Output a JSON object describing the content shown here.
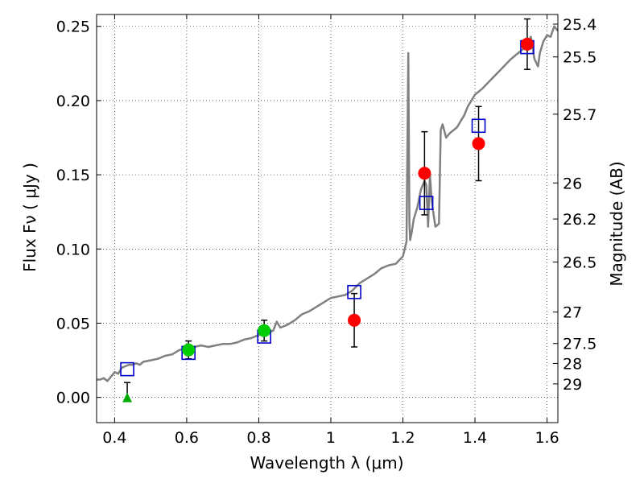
{
  "chart_data": {
    "type": "scatter",
    "xlabel": "Wavelength  λ (μm)",
    "ylabel": "Flux  Fν  ( μJy )",
    "ylabel_right": "Magnitude (AB)",
    "xlim": [
      0.35,
      1.63
    ],
    "ylim": [
      -0.017,
      0.258
    ],
    "grid": true,
    "x_ticks": [
      {
        "value": 0.4,
        "label": "0.4"
      },
      {
        "value": 0.6,
        "label": "0.6"
      },
      {
        "value": 0.8,
        "label": "0.8"
      },
      {
        "value": 1.0,
        "label": "1"
      },
      {
        "value": 1.2,
        "label": "1.2"
      },
      {
        "value": 1.4,
        "label": "1.4"
      },
      {
        "value": 1.6,
        "label": "1.6"
      }
    ],
    "y_ticks": [
      {
        "value": 0.0,
        "label": "0.00"
      },
      {
        "value": 0.05,
        "label": "0.05"
      },
      {
        "value": 0.1,
        "label": "0.10"
      },
      {
        "value": 0.15,
        "label": "0.15"
      },
      {
        "value": 0.2,
        "label": "0.20"
      },
      {
        "value": 0.25,
        "label": "0.25"
      }
    ],
    "mag_ticks": [
      {
        "flux": 0.2515,
        "label": "25.4"
      },
      {
        "flux": 0.2294,
        "label": "25.5"
      },
      {
        "flux": 0.1908,
        "label": "25.7"
      },
      {
        "flux": 0.1445,
        "label": "26"
      },
      {
        "flux": 0.1202,
        "label": "26.2"
      },
      {
        "flux": 0.0912,
        "label": "26.5"
      },
      {
        "flux": 0.0575,
        "label": "27"
      },
      {
        "flux": 0.0363,
        "label": "27.5"
      },
      {
        "flux": 0.0229,
        "label": "28"
      },
      {
        "flux": 0.0091,
        "label": "29"
      }
    ],
    "series": [
      {
        "kind": "line",
        "color": "#808080",
        "x": [
          0.35,
          0.36,
          0.37,
          0.38,
          0.39,
          0.4,
          0.41,
          0.42,
          0.43,
          0.44,
          0.45,
          0.46,
          0.47,
          0.48,
          0.5,
          0.52,
          0.54,
          0.56,
          0.58,
          0.6,
          0.62,
          0.64,
          0.66,
          0.68,
          0.7,
          0.72,
          0.74,
          0.76,
          0.78,
          0.8,
          0.82,
          0.84,
          0.85,
          0.86,
          0.88,
          0.9,
          0.92,
          0.94,
          0.96,
          0.98,
          1.0,
          1.02,
          1.04,
          1.06,
          1.08,
          1.1,
          1.12,
          1.14,
          1.16,
          1.18,
          1.2,
          1.21,
          1.215,
          1.218,
          1.22,
          1.225,
          1.23,
          1.24,
          1.25,
          1.26,
          1.265,
          1.27,
          1.275,
          1.28,
          1.29,
          1.3,
          1.305,
          1.31,
          1.32,
          1.33,
          1.34,
          1.35,
          1.36,
          1.37,
          1.38,
          1.39,
          1.4,
          1.42,
          1.44,
          1.46,
          1.48,
          1.5,
          1.52,
          1.54,
          1.555,
          1.565,
          1.575,
          1.58,
          1.59,
          1.6,
          1.61,
          1.62,
          1.63
        ],
        "y": [
          0.012,
          0.012,
          0.013,
          0.011,
          0.014,
          0.017,
          0.016,
          0.02,
          0.021,
          0.022,
          0.022,
          0.023,
          0.022,
          0.024,
          0.025,
          0.026,
          0.028,
          0.029,
          0.032,
          0.033,
          0.034,
          0.035,
          0.034,
          0.035,
          0.036,
          0.036,
          0.037,
          0.039,
          0.04,
          0.042,
          0.043,
          0.045,
          0.051,
          0.047,
          0.049,
          0.052,
          0.056,
          0.058,
          0.061,
          0.064,
          0.067,
          0.068,
          0.069,
          0.072,
          0.077,
          0.08,
          0.083,
          0.087,
          0.089,
          0.09,
          0.095,
          0.105,
          0.232,
          0.118,
          0.106,
          0.112,
          0.12,
          0.128,
          0.14,
          0.146,
          0.143,
          0.115,
          0.15,
          0.132,
          0.115,
          0.117,
          0.18,
          0.184,
          0.175,
          0.178,
          0.18,
          0.182,
          0.186,
          0.19,
          0.196,
          0.2,
          0.204,
          0.208,
          0.213,
          0.218,
          0.223,
          0.228,
          0.232,
          0.236,
          0.243,
          0.228,
          0.223,
          0.232,
          0.24,
          0.244,
          0.243,
          0.25,
          0.247
        ]
      },
      {
        "kind": "open-square",
        "color": "#0000cc",
        "x": [
          0.435,
          0.605,
          0.815,
          1.065,
          1.265,
          1.41,
          1.545
        ],
        "y": [
          0.019,
          0.03,
          0.041,
          0.071,
          0.131,
          0.183,
          0.236
        ]
      },
      {
        "kind": "filled-circle",
        "color": "#ff0000",
        "x": [
          1.065,
          1.26,
          1.41,
          1.545
        ],
        "y": [
          0.052,
          0.151,
          0.171,
          0.238
        ],
        "yerr": [
          0.018,
          0.028,
          0.025,
          0.017
        ]
      },
      {
        "kind": "filled-circle",
        "color": "#00cc00",
        "x": [
          0.605,
          0.815
        ],
        "y": [
          0.032,
          0.045
        ],
        "yerr": [
          0.006,
          0.007
        ]
      },
      {
        "kind": "upper-limit-triangle",
        "color": "#00aa00",
        "x": [
          0.435
        ],
        "y": [
          0.0
        ],
        "ytop": [
          0.01
        ]
      }
    ]
  }
}
